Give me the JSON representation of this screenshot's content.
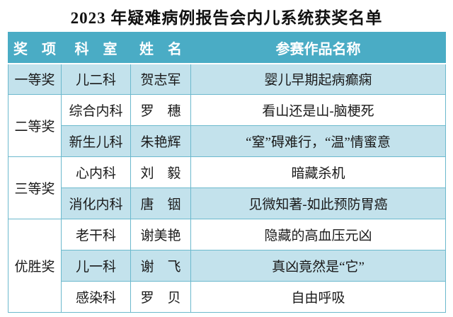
{
  "title": "2023 年疑难病例报告会内儿系统获奖名单",
  "colors": {
    "header_bg": "#4AACC5",
    "header_text": "#FFFFFF",
    "band_row_bg": "#C3E2EC",
    "plain_row_bg": "#FFFFFF",
    "border": "#6CB9CD",
    "body_text": "#1A1A1A",
    "title_text": "#111111"
  },
  "header": {
    "cols": [
      "奖　项",
      "科　室",
      "姓　名",
      "参赛作品名称"
    ]
  },
  "table": {
    "groups": [
      {
        "award": "一等奖",
        "rows": [
          {
            "dept": "儿二科",
            "name": "贺志军",
            "work": "婴儿早期起病癫痫"
          }
        ]
      },
      {
        "award": "二等奖",
        "rows": [
          {
            "dept": "综合内科",
            "name": "罗　穗",
            "work": "看山还是山-脑梗死"
          },
          {
            "dept": "新生儿科",
            "name": "朱艳辉",
            "work": "“窒”碍难行，“温”情蜜意"
          }
        ]
      },
      {
        "award": "三等奖",
        "rows": [
          {
            "dept": "心内科",
            "name": "刘　毅",
            "work": "暗藏杀机"
          },
          {
            "dept": "消化内科",
            "name": "唐　铟",
            "work": "见微知著-如此预防胃癌"
          }
        ]
      },
      {
        "award": "优胜奖",
        "rows": [
          {
            "dept": "老干科",
            "name": "谢美艳",
            "work": "隐藏的高血压元凶"
          },
          {
            "dept": "儿一科",
            "name": "谢　飞",
            "work": "真凶竟然是“它”"
          },
          {
            "dept": "感染科",
            "name": "罗　贝",
            "work": "自由呼吸"
          }
        ]
      }
    ]
  }
}
